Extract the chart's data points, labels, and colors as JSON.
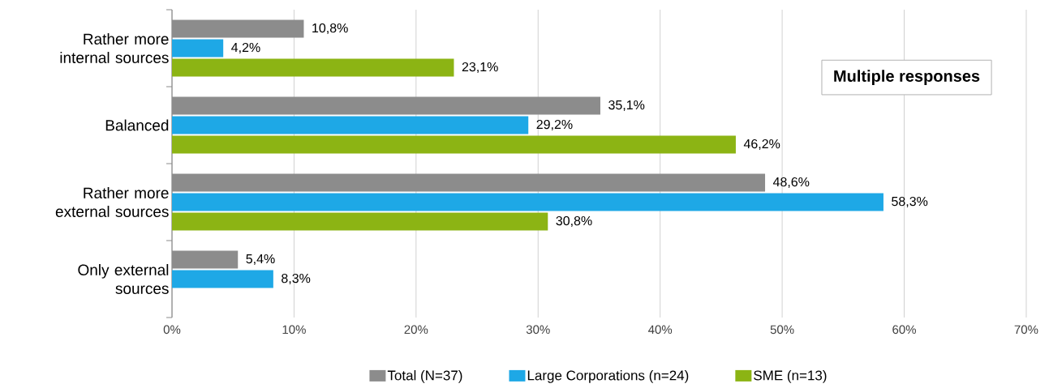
{
  "chart_data": {
    "type": "bar",
    "orientation": "horizontal",
    "categories": [
      "Rather more internal sources",
      "Balanced",
      "Rather more external sources",
      "Only external sources"
    ],
    "series": [
      {
        "name": "Total (N=37)",
        "color": "#8c8c8c",
        "values": [
          10.8,
          35.1,
          48.6,
          5.4
        ],
        "value_labels": [
          "10,8%",
          "35,1%",
          "48,6%",
          "5,4%"
        ]
      },
      {
        "name": "Large Corporations (n=24)",
        "color": "#1ea8e6",
        "values": [
          4.2,
          29.2,
          58.3,
          8.3
        ],
        "value_labels": [
          "4,2%",
          "29,2%",
          "58,3%",
          "8,3%"
        ]
      },
      {
        "name": "SME (n=13)",
        "color": "#8cb414",
        "values": [
          23.1,
          46.2,
          30.8,
          null
        ],
        "value_labels": [
          "23,1%",
          "46,2%",
          "30,8%",
          null
        ]
      }
    ],
    "xlim": [
      0,
      70
    ],
    "xticks": [
      {
        "value": 0,
        "label": "0%"
      },
      {
        "value": 10,
        "label": "10%"
      },
      {
        "value": 20,
        "label": "20%"
      },
      {
        "value": 30,
        "label": "30%"
      },
      {
        "value": 40,
        "label": "40%"
      },
      {
        "value": 50,
        "label": "50%"
      },
      {
        "value": 60,
        "label": "60%"
      },
      {
        "value": 70,
        "label": "70%"
      }
    ],
    "grid": "x",
    "legend": "bottom",
    "annotations": [
      "Multiple responses"
    ]
  }
}
